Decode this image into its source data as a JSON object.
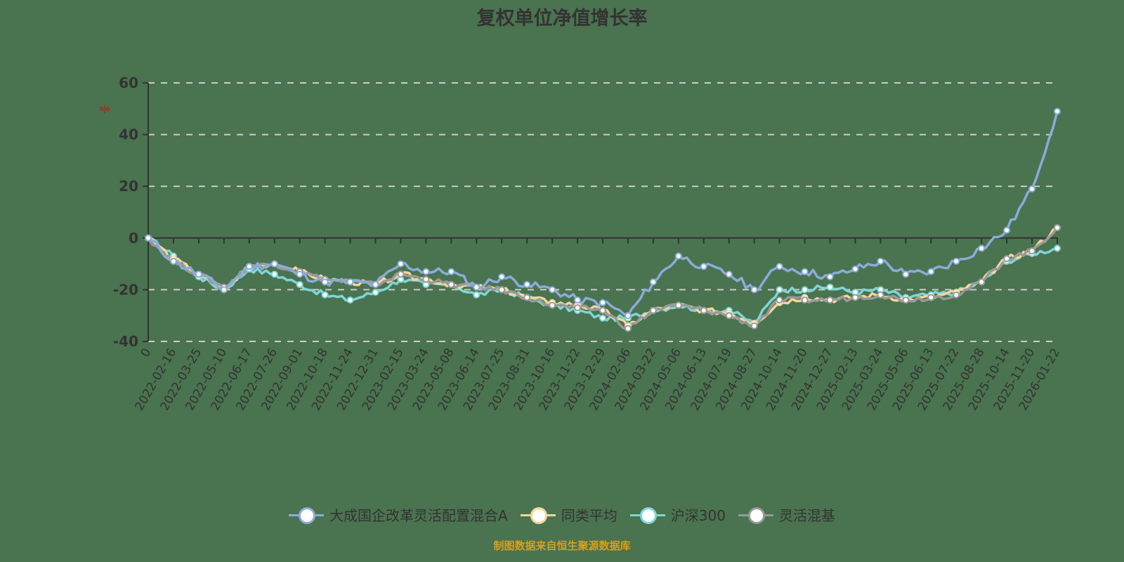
{
  "title": "复权单位净值增长率",
  "y_unit": "%",
  "source": "制图数据来自恒生聚源数据库",
  "colors": {
    "fund": "#8aacd9",
    "peer_avg": "#f5d59a",
    "hs300": "#7dd6d6",
    "flex_mixed": "#999999",
    "axis": "#333333",
    "grid": "#cccccc",
    "background": "#4a7350"
  },
  "legend": [
    {
      "label": "大成国企改革灵活配置混合A",
      "color": "#8aacd9"
    },
    {
      "label": "同类平均",
      "color": "#f5d59a"
    },
    {
      "label": "沪深300",
      "color": "#7dd6d6"
    },
    {
      "label": "灵活混基",
      "color": "#999999"
    }
  ],
  "chart_data": {
    "type": "line",
    "title": "复权单位净值增长率",
    "xlabel": "",
    "ylabel": "%",
    "ylim": [
      -40,
      60
    ],
    "yticks": [
      60,
      40,
      20,
      0,
      -20,
      -40
    ],
    "grid": true,
    "legend_position": "bottom",
    "categories": [
      "0",
      "2022-02-16",
      "2022-03-25",
      "2022-05-10",
      "2022-06-17",
      "2022-07-26",
      "2022-09-01",
      "2022-10-18",
      "2022-11-24",
      "2022-12-31",
      "2023-02-15",
      "2023-03-24",
      "2023-05-08",
      "2023-06-14",
      "2023-07-25",
      "2023-08-31",
      "2023-10-16",
      "2023-11-22",
      "2023-12-29",
      "2024-02-06",
      "2024-03-22",
      "2024-05-06",
      "2024-06-13",
      "2024-07-19",
      "2024-08-27",
      "2024-10-14",
      "2024-11-20",
      "2024-12-27",
      "2025-02-13",
      "2025-03-24",
      "2025-05-06",
      "2025-06-13",
      "2025-07-22",
      "2025-08-28",
      "2025-10-14",
      "2025-11-20",
      "2026-01-22"
    ],
    "series": [
      {
        "name": "大成国企改革灵活配置混合A",
        "values": [
          0,
          -9,
          -14,
          -20,
          -11,
          -10,
          -14,
          -17,
          -17,
          -18,
          -10,
          -13,
          -13,
          -19,
          -15,
          -18,
          -20,
          -24,
          -25,
          -30,
          -17,
          -7,
          -11,
          -14,
          -20,
          -11,
          -13,
          -15,
          -12,
          -9,
          -14,
          -13,
          -9,
          -4,
          3,
          19,
          49
        ]
      },
      {
        "name": "同类平均",
        "values": [
          0,
          -8,
          -14,
          -20,
          -11,
          -10,
          -13,
          -16,
          -17,
          -18,
          -14,
          -16,
          -18,
          -19,
          -20,
          -23,
          -25,
          -26,
          -28,
          -34,
          -28,
          -26,
          -28,
          -29,
          -33,
          -25,
          -23,
          -24,
          -23,
          -22,
          -24,
          -23,
          -21,
          -17,
          -8,
          -5,
          4
        ]
      },
      {
        "name": "沪深300",
        "values": [
          0,
          -7,
          -15,
          -20,
          -12,
          -14,
          -18,
          -22,
          -24,
          -21,
          -16,
          -18,
          -18,
          -22,
          -20,
          -23,
          -26,
          -28,
          -31,
          -31,
          -28,
          -26,
          -28,
          -28,
          -33,
          -20,
          -20,
          -19,
          -21,
          -20,
          -23,
          -22,
          -21,
          -17,
          -9,
          -6,
          -4
        ]
      },
      {
        "name": "灵活混基",
        "values": [
          0,
          -9,
          -14,
          -19,
          -11,
          -10,
          -13,
          -16,
          -17,
          -18,
          -14,
          -16,
          -18,
          -19,
          -20,
          -23,
          -26,
          -27,
          -28,
          -35,
          -28,
          -26,
          -28,
          -30,
          -34,
          -24,
          -24,
          -24,
          -23,
          -22,
          -24,
          -23,
          -22,
          -17,
          -8,
          -5,
          4
        ]
      }
    ]
  }
}
